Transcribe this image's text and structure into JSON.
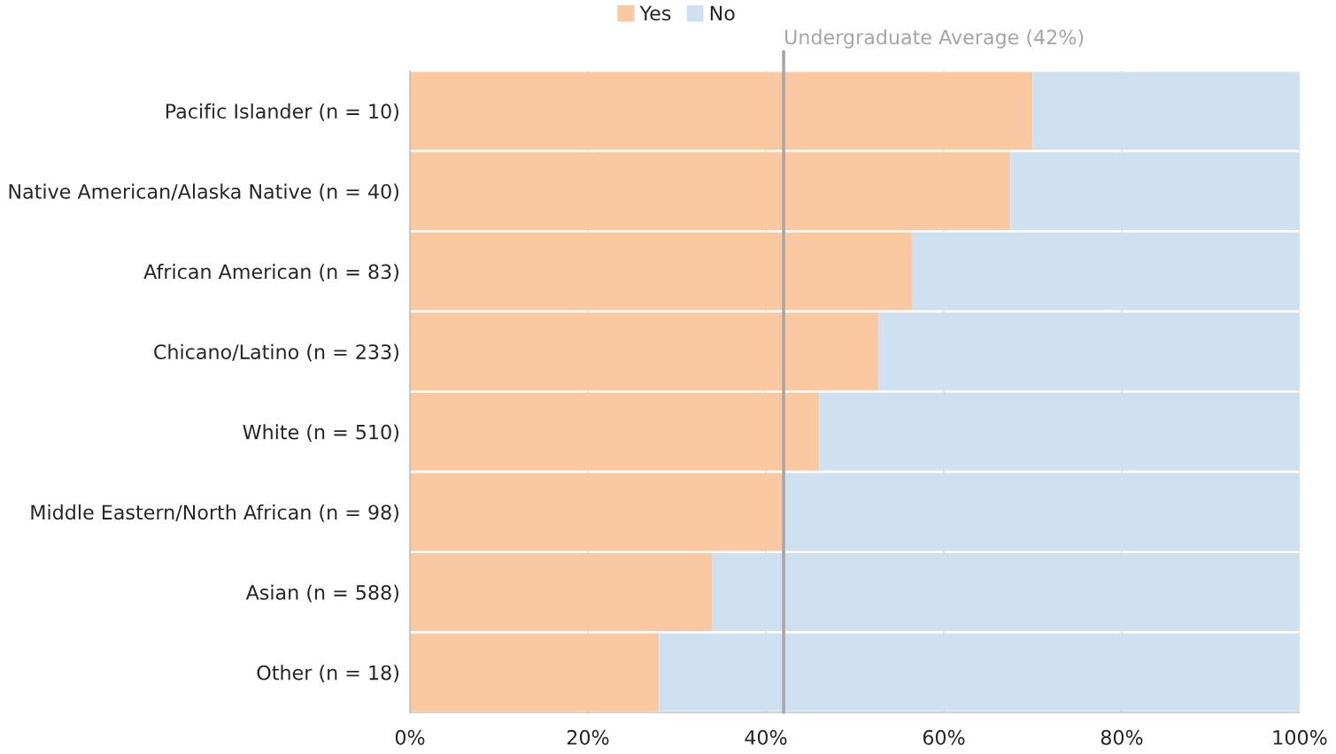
{
  "chart_data": {
    "type": "bar",
    "orientation": "horizontal",
    "stacked": true,
    "categories": [
      "Pacific Islander (n = 10)",
      "Native American/Alaska Native (n = 40)",
      "African American (n = 83)",
      "Chicano/Latino (n = 233)",
      "White (n = 510)",
      "Middle Eastern/North African (n = 98)",
      "Asian (n = 588)",
      "Other (n = 18)"
    ],
    "series": [
      {
        "name": "Yes",
        "color": "#fac9a1",
        "values": [
          70,
          67.5,
          56.5,
          52.7,
          46,
          42,
          34,
          28
        ]
      },
      {
        "name": "No",
        "color": "#cfe0f1",
        "values": [
          30,
          32.5,
          43.5,
          47.3,
          54,
          58,
          66,
          72
        ]
      }
    ],
    "xlim": [
      0,
      100
    ],
    "xticks": [
      {
        "value": 0,
        "label": "0%"
      },
      {
        "value": 20,
        "label": "20%"
      },
      {
        "value": 40,
        "label": "40%"
      },
      {
        "value": 60,
        "label": "60%"
      },
      {
        "value": 80,
        "label": "80%"
      },
      {
        "value": 100,
        "label": "100%"
      }
    ],
    "ref_lines": [
      {
        "axis": "x",
        "value": 42,
        "label": "Undergraduate Average (42%)",
        "color": "#a6a6a6"
      }
    ],
    "grid": "x",
    "legend": "top"
  }
}
